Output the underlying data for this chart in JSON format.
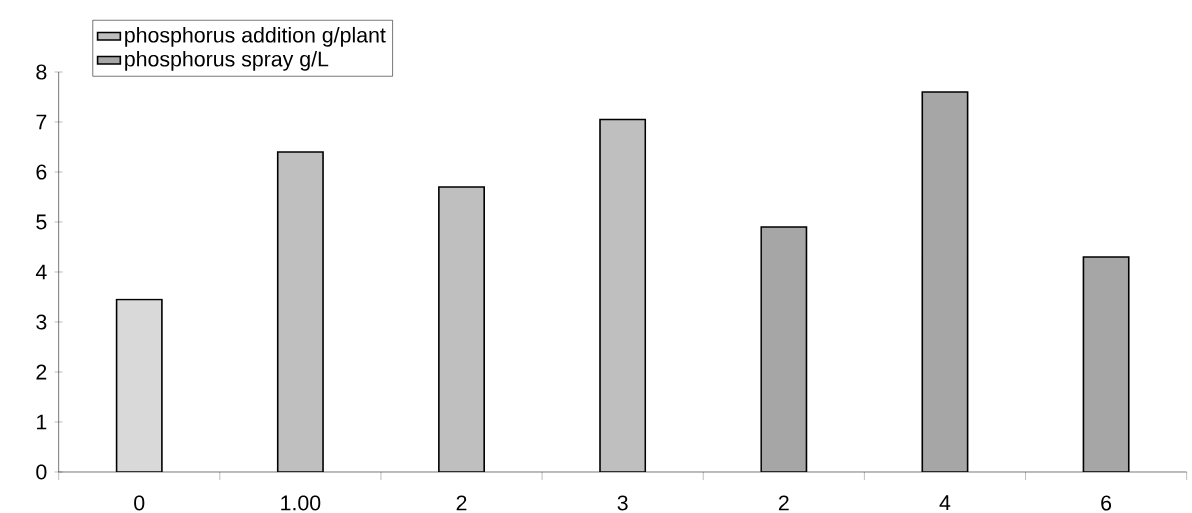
{
  "chart_data": {
    "type": "bar",
    "categories": [
      "0",
      "1.00",
      "2",
      "3",
      "2",
      "4",
      "6"
    ],
    "series": [
      {
        "color": "#d9d9d9",
        "values": [
          3.45,
          null,
          null,
          null,
          null,
          null,
          null
        ]
      },
      {
        "name": "phosphorus addition g/plant",
        "color": "#bfbfbf",
        "values": [
          null,
          6.4,
          5.7,
          7.05,
          null,
          null,
          null
        ]
      },
      {
        "name": "phosphorus spray g/L",
        "color": "#a6a6a6",
        "values": [
          null,
          null,
          null,
          null,
          4.9,
          7.6,
          4.3
        ]
      }
    ],
    "ylim": [
      0,
      8
    ],
    "yticks": [
      0,
      1,
      2,
      3,
      4,
      5,
      6,
      7,
      8
    ],
    "grid": false,
    "legend": "top left"
  }
}
